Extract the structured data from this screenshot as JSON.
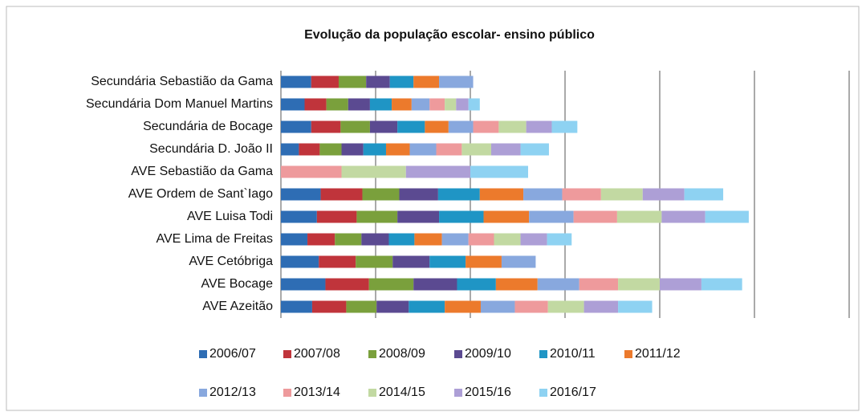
{
  "chart_data": {
    "type": "stacked-barh",
    "title": "Evolução da população escolar- ensino público",
    "categories": [
      "Secundária Sebastião da Gama",
      "Secundária Dom Manuel Martins",
      "Secundária de Bocage",
      "Secundária D. João II",
      "AVE Sebastião da Gama",
      "AVE Ordem de Sant`Iago",
      "AVE Luisa Todi",
      "AVE Lima de Freitas",
      "AVE Cetóbriga",
      "AVE Bocage",
      "AVE Azeitão"
    ],
    "series": [
      {
        "name": "2006/07",
        "color": "#2e6db4",
        "values": [
          320,
          250,
          320,
          190,
          0,
          420,
          380,
          280,
          400,
          470,
          330
        ]
      },
      {
        "name": "2007/08",
        "color": "#c0343b",
        "values": [
          290,
          230,
          310,
          220,
          0,
          440,
          420,
          290,
          390,
          460,
          360
        ]
      },
      {
        "name": "2008/09",
        "color": "#7aa03c",
        "values": [
          290,
          230,
          310,
          230,
          0,
          390,
          430,
          280,
          390,
          470,
          320
        ]
      },
      {
        "name": "2009/10",
        "color": "#5b4a91",
        "values": [
          250,
          230,
          290,
          230,
          0,
          410,
          440,
          290,
          390,
          460,
          340
        ]
      },
      {
        "name": "2010/11",
        "color": "#1f95c5",
        "values": [
          250,
          230,
          290,
          240,
          0,
          440,
          470,
          270,
          380,
          410,
          380
        ]
      },
      {
        "name": "2011/12",
        "color": "#ec7a2c",
        "values": [
          270,
          210,
          250,
          250,
          0,
          460,
          480,
          290,
          380,
          440,
          380
        ]
      },
      {
        "name": "2012/13",
        "color": "#88a8de",
        "values": [
          360,
          190,
          260,
          280,
          0,
          410,
          470,
          280,
          360,
          440,
          360
        ]
      },
      {
        "name": "2013/14",
        "color": "#ee9a9c",
        "values": [
          0,
          160,
          270,
          270,
          640,
          410,
          460,
          270,
          0,
          410,
          350
        ]
      },
      {
        "name": "2014/15",
        "color": "#c2d9a2",
        "values": [
          0,
          120,
          290,
          310,
          680,
          440,
          470,
          280,
          0,
          440,
          380
        ]
      },
      {
        "name": "2015/16",
        "color": "#ad9fd6",
        "values": [
          0,
          130,
          270,
          310,
          680,
          440,
          460,
          280,
          0,
          440,
          360
        ]
      },
      {
        "name": "2016/17",
        "color": "#8ed2f2",
        "values": [
          0,
          120,
          270,
          300,
          610,
          410,
          460,
          260,
          0,
          430,
          360
        ]
      }
    ],
    "xlim": [
      0,
      6000
    ],
    "xticks": [
      0,
      1000,
      2000,
      3000,
      4000,
      5000,
      6000
    ],
    "grid": true
  }
}
